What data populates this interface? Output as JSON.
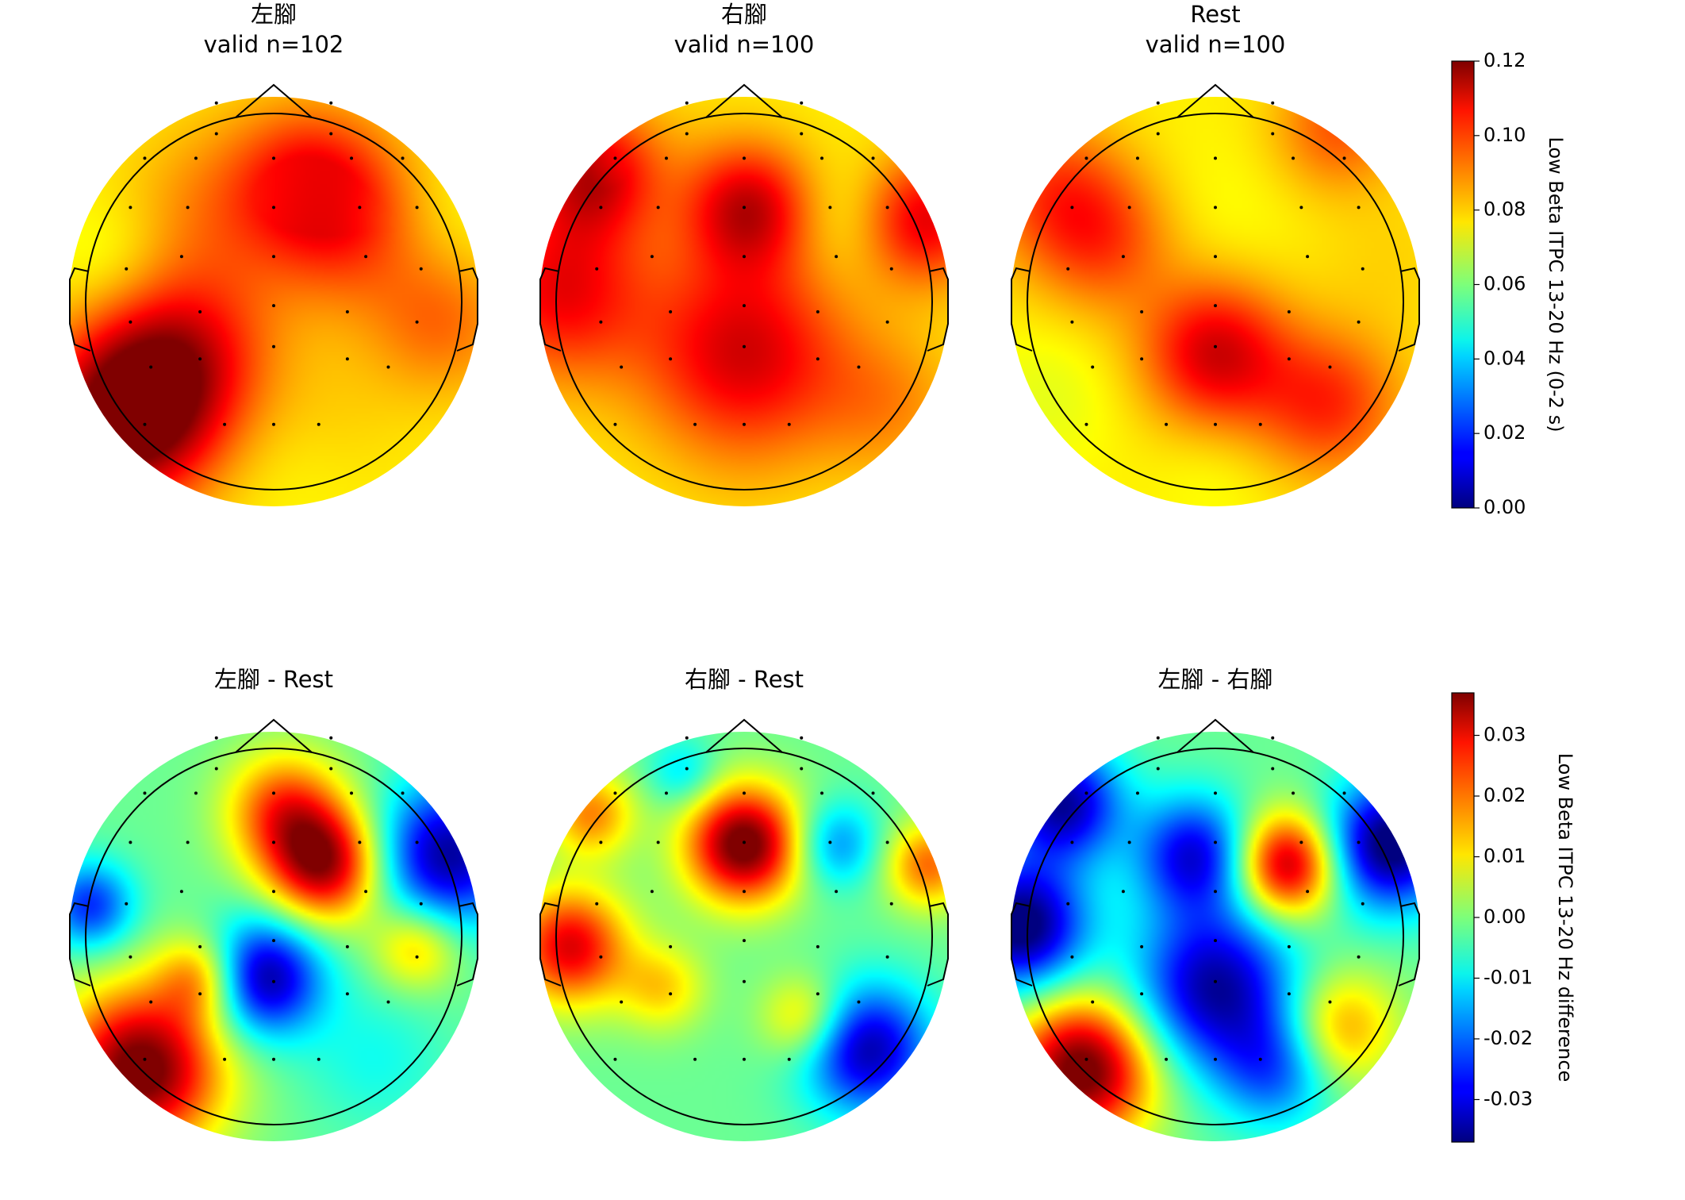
{
  "chart_data": [
    {
      "type": "heatmap",
      "subtype": "eeg-topomap",
      "colormap": "jet",
      "row": "conditions",
      "colorbar": {
        "label": "Low Beta ITPC 13-20 Hz (0-2 s)",
        "range": [
          0.0,
          0.12
        ],
        "ticks": [
          "0.12",
          "0.10",
          "0.08",
          "0.06",
          "0.04",
          "0.02",
          "0.00"
        ]
      },
      "panels": [
        {
          "title": "左腳",
          "subtitle": "valid n=102",
          "blobs": [
            {
              "x": -0.72,
              "y": -0.58,
              "v": 0.125,
              "s": 0.3
            },
            {
              "x": -0.45,
              "y": -0.25,
              "v": 0.105,
              "s": 0.3
            },
            {
              "x": 0.35,
              "y": 0.4,
              "v": 0.1,
              "s": 0.3
            },
            {
              "x": 0.15,
              "y": 0.62,
              "v": 0.094,
              "s": 0.25
            },
            {
              "x": -0.3,
              "y": 0.45,
              "v": 0.088,
              "s": 0.3
            },
            {
              "x": 0.82,
              "y": -0.1,
              "v": 0.092,
              "s": 0.25
            },
            {
              "x": -0.78,
              "y": 0.18,
              "v": 0.07,
              "s": 0.22
            },
            {
              "x": 0.8,
              "y": 0.4,
              "v": 0.072,
              "s": 0.25
            },
            {
              "x": 0.05,
              "y": -0.78,
              "v": 0.075,
              "s": 0.25
            },
            {
              "x": 0.3,
              "y": -0.55,
              "v": 0.08,
              "s": 0.25
            }
          ]
        },
        {
          "title": "右腳",
          "subtitle": "valid n=100",
          "blobs": [
            {
              "x": 0.02,
              "y": 0.46,
              "v": 0.11,
              "s": 0.22
            },
            {
              "x": 0.0,
              "y": -0.25,
              "v": 0.11,
              "s": 0.35
            },
            {
              "x": -0.9,
              "y": 0.05,
              "v": 0.106,
              "s": 0.3
            },
            {
              "x": -0.75,
              "y": 0.62,
              "v": 0.108,
              "s": 0.22
            },
            {
              "x": 0.88,
              "y": 0.4,
              "v": 0.108,
              "s": 0.22
            },
            {
              "x": 0.5,
              "y": 0.4,
              "v": 0.07,
              "s": 0.2
            },
            {
              "x": 0.0,
              "y": -0.85,
              "v": 0.078,
              "s": 0.22
            },
            {
              "x": -0.5,
              "y": 0.75,
              "v": 0.08,
              "s": 0.25
            },
            {
              "x": 0.7,
              "y": -0.5,
              "v": 0.088,
              "s": 0.25
            }
          ]
        },
        {
          "title": "Rest",
          "subtitle": "valid n=100",
          "blobs": [
            {
              "x": 0.0,
              "y": -0.25,
              "v": 0.11,
              "s": 0.25
            },
            {
              "x": 0.55,
              "y": -0.5,
              "v": 0.1,
              "s": 0.25
            },
            {
              "x": 0.6,
              "y": 0.85,
              "v": 0.095,
              "s": 0.22
            },
            {
              "x": -0.55,
              "y": 0.3,
              "v": 0.096,
              "s": 0.25
            },
            {
              "x": -0.8,
              "y": 0.55,
              "v": 0.094,
              "s": 0.25
            },
            {
              "x": 0.0,
              "y": 0.4,
              "v": 0.074,
              "s": 0.3
            },
            {
              "x": -0.8,
              "y": -0.45,
              "v": 0.072,
              "s": 0.25
            },
            {
              "x": 0.0,
              "y": -0.85,
              "v": 0.074,
              "s": 0.2
            },
            {
              "x": 0.85,
              "y": 0.2,
              "v": 0.08,
              "s": 0.25
            }
          ]
        }
      ]
    },
    {
      "type": "heatmap",
      "subtype": "eeg-topomap",
      "colormap": "jet",
      "row": "differences",
      "colorbar": {
        "label": "Low Beta ITPC 13-20 Hz difference",
        "range": [
          -0.037,
          0.037
        ],
        "ticks": [
          "0.03",
          "0.02",
          "0.01",
          "0.00",
          "-0.01",
          "-0.02",
          "-0.03"
        ]
      },
      "panels": [
        {
          "title": "左腳 - Rest",
          "blobs": [
            {
              "x": -0.65,
              "y": -0.65,
              "v": 0.04,
              "s": 0.28
            },
            {
              "x": 0.25,
              "y": 0.35,
              "v": 0.034,
              "s": 0.2
            },
            {
              "x": 0.05,
              "y": 0.62,
              "v": 0.022,
              "s": 0.2
            },
            {
              "x": -0.05,
              "y": -0.2,
              "v": -0.036,
              "s": 0.2
            },
            {
              "x": 0.85,
              "y": 0.4,
              "v": -0.035,
              "s": 0.25
            },
            {
              "x": -0.9,
              "y": 0.15,
              "v": -0.025,
              "s": 0.15
            },
            {
              "x": 0.7,
              "y": -0.05,
              "v": 0.015,
              "s": 0.15
            },
            {
              "x": -0.35,
              "y": -0.2,
              "v": 0.018,
              "s": 0.15
            },
            {
              "x": 0.5,
              "y": -0.6,
              "v": -0.008,
              "s": 0.25
            }
          ]
        },
        {
          "title": "右腳 - Rest",
          "blobs": [
            {
              "x": 0.0,
              "y": 0.45,
              "v": 0.04,
              "s": 0.2
            },
            {
              "x": -0.85,
              "y": -0.05,
              "v": 0.03,
              "s": 0.2
            },
            {
              "x": 0.6,
              "y": -0.55,
              "v": -0.034,
              "s": 0.22
            },
            {
              "x": 0.45,
              "y": 0.45,
              "v": -0.018,
              "s": 0.15
            },
            {
              "x": -0.3,
              "y": 0.8,
              "v": -0.012,
              "s": 0.12
            },
            {
              "x": -0.75,
              "y": 0.6,
              "v": 0.018,
              "s": 0.15
            },
            {
              "x": 0.9,
              "y": 0.35,
              "v": 0.02,
              "s": 0.15
            },
            {
              "x": 0.3,
              "y": -0.4,
              "v": 0.015,
              "s": 0.15
            },
            {
              "x": -0.4,
              "y": -0.25,
              "v": 0.012,
              "s": 0.15
            }
          ]
        },
        {
          "title": "左腳 - 右腳",
          "blobs": [
            {
              "x": -0.65,
              "y": -0.65,
              "v": 0.04,
              "s": 0.25
            },
            {
              "x": 0.35,
              "y": 0.35,
              "v": 0.036,
              "s": 0.18
            },
            {
              "x": -0.95,
              "y": 0.05,
              "v": -0.04,
              "s": 0.22
            },
            {
              "x": 0.0,
              "y": -0.25,
              "v": -0.035,
              "s": 0.28
            },
            {
              "x": -0.1,
              "y": 0.4,
              "v": -0.03,
              "s": 0.2
            },
            {
              "x": 0.85,
              "y": 0.45,
              "v": -0.04,
              "s": 0.22
            },
            {
              "x": -0.75,
              "y": 0.65,
              "v": -0.035,
              "s": 0.2
            },
            {
              "x": 0.6,
              "y": -0.45,
              "v": 0.018,
              "s": 0.2
            },
            {
              "x": 0.3,
              "y": -0.65,
              "v": -0.02,
              "s": 0.2
            }
          ]
        }
      ]
    }
  ],
  "sensors": [
    [
      -0.28,
      0.97
    ],
    [
      0.28,
      0.97
    ],
    [
      -0.28,
      0.82
    ],
    [
      0.28,
      0.82
    ],
    [
      -0.63,
      0.7
    ],
    [
      -0.38,
      0.7
    ],
    [
      0.0,
      0.7
    ],
    [
      0.38,
      0.7
    ],
    [
      0.63,
      0.7
    ],
    [
      -0.7,
      0.46
    ],
    [
      -0.42,
      0.46
    ],
    [
      0.0,
      0.46
    ],
    [
      0.42,
      0.46
    ],
    [
      0.7,
      0.46
    ],
    [
      -0.72,
      0.16
    ],
    [
      -0.45,
      0.22
    ],
    [
      0.0,
      0.22
    ],
    [
      0.45,
      0.22
    ],
    [
      0.72,
      0.16
    ],
    [
      -0.7,
      -0.1
    ],
    [
      -0.36,
      -0.05
    ],
    [
      0.0,
      -0.02
    ],
    [
      0.36,
      -0.05
    ],
    [
      0.7,
      -0.1
    ],
    [
      -0.6,
      -0.32
    ],
    [
      -0.36,
      -0.28
    ],
    [
      0.0,
      -0.22
    ],
    [
      0.36,
      -0.28
    ],
    [
      0.56,
      -0.32
    ],
    [
      -0.63,
      -0.6
    ],
    [
      -0.24,
      -0.6
    ],
    [
      0.0,
      -0.6
    ],
    [
      0.22,
      -0.6
    ]
  ]
}
